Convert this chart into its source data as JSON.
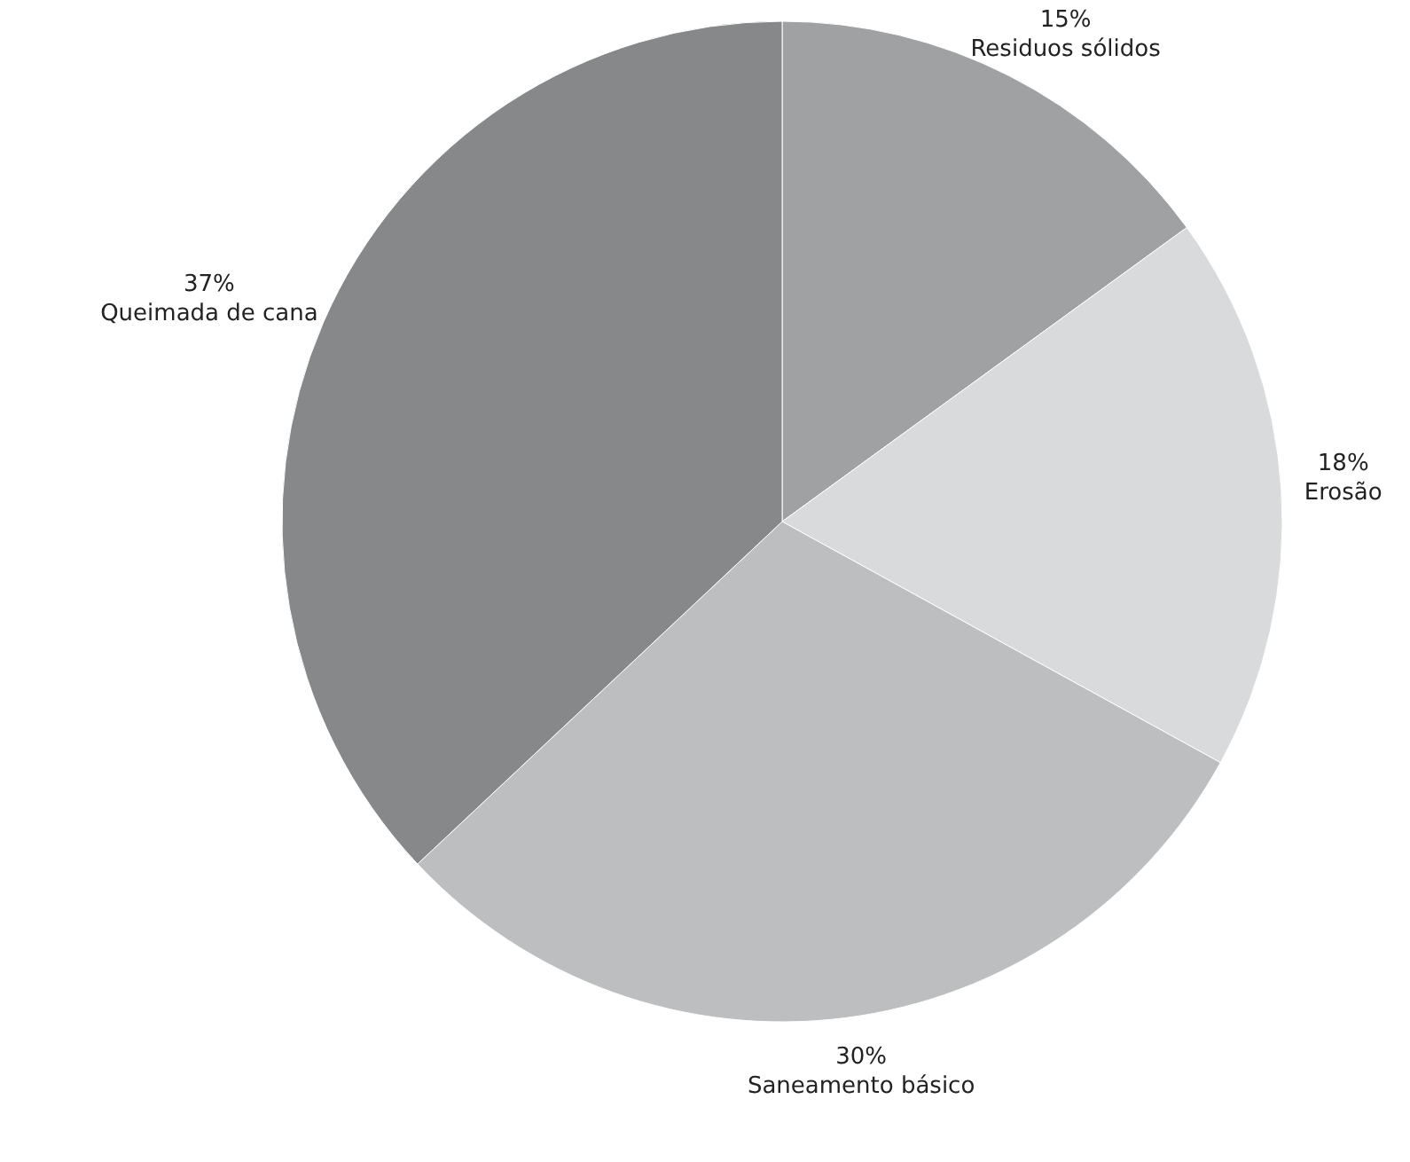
{
  "chart_data": {
    "type": "pie",
    "categories": [
      "Residuos sólidos",
      "Erosão",
      "Saneamento básico",
      "Queimada de cana"
    ],
    "values": [
      15,
      18,
      30,
      37
    ],
    "value_labels": [
      "15%",
      "18%",
      "30%",
      "37%"
    ],
    "colors": [
      "#a0a1a3",
      "#d9dadc",
      "#bdbec0",
      "#87888a"
    ]
  }
}
